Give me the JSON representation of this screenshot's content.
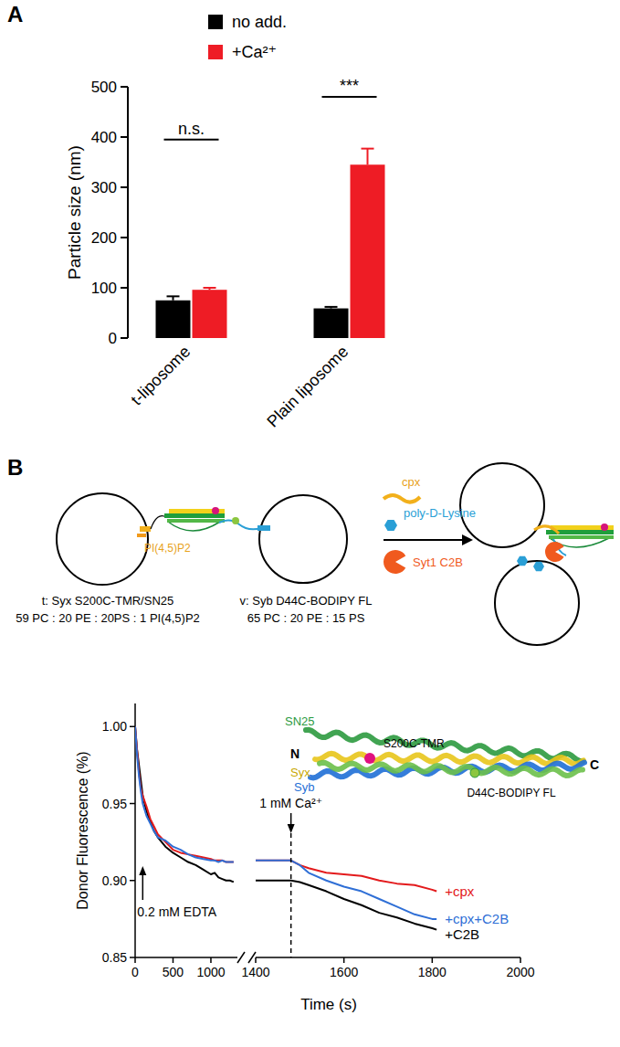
{
  "panels": [
    "A",
    "B"
  ],
  "chart_data": [
    {
      "type": "bar",
      "ylabel": "Particle size (nm)",
      "categories": [
        "t-liposome",
        "Plain liposome"
      ],
      "series": [
        {
          "name": "no add.",
          "color": "#000000",
          "values": [
            75,
            59
          ],
          "errors": [
            8,
            3
          ]
        },
        {
          "name": "+Ca²⁺",
          "color": "#ee1c25",
          "values": [
            96,
            345
          ],
          "errors": [
            4,
            32
          ]
        }
      ],
      "ylim": [
        0,
        500
      ],
      "yticks": [
        0,
        100,
        200,
        300,
        400,
        500
      ],
      "annotations": [
        {
          "text": "n.s.",
          "category": 0,
          "y": 395
        },
        {
          "text": "***",
          "category": 1,
          "y": 480
        }
      ]
    },
    {
      "type": "line",
      "ylabel": "Donor Fluorescence (%)",
      "x": [
        0,
        25,
        50,
        75,
        100,
        150,
        200,
        250,
        300,
        400,
        500,
        600,
        700,
        800,
        900,
        1000,
        1050,
        1100,
        1150,
        1200,
        1250,
        1300
      ],
      "series": [
        {
          "color": "#000000",
          "values": [
            1.0,
            0.985,
            0.975,
            0.965,
            0.955,
            0.945,
            0.938,
            0.932,
            0.928,
            0.922,
            0.918,
            0.915,
            0.912,
            0.91,
            0.907,
            0.904,
            0.905,
            0.902,
            0.901,
            0.9,
            0.9,
            0.899
          ]
        },
        {
          "color": "#e31a1c",
          "values": [
            1.0,
            0.985,
            0.97,
            0.96,
            0.955,
            0.948,
            0.94,
            0.935,
            0.93,
            0.925,
            0.92,
            0.918,
            0.917,
            0.916,
            0.915,
            0.914,
            0.913,
            0.913,
            0.913,
            0.912,
            0.912,
            0.912
          ]
        },
        {
          "color": "#2f6fd6",
          "values": [
            1.0,
            0.982,
            0.968,
            0.958,
            0.95,
            0.942,
            0.937,
            0.932,
            0.928,
            0.926,
            0.922,
            0.92,
            0.917,
            0.915,
            0.914,
            0.913,
            0.913,
            0.912,
            0.913,
            0.912,
            0.912,
            0.912
          ]
        }
      ],
      "xlim": [
        0,
        1350
      ],
      "xticks": [
        0,
        500,
        1000
      ],
      "ylim": [
        0.85,
        1.015
      ],
      "yticks": [
        0.85,
        {
          "value": 0.9,
          "label": "0.90"
        },
        0.95,
        {
          "value": 1,
          "label": "1.00"
        }
      ],
      "annotations": [
        {
          "text": "0.2 mM EDTA",
          "x": 100
        }
      ]
    },
    {
      "type": "line",
      "xlabel": "Time (s)",
      "tick_labels": "x",
      "x": [
        1400,
        1440,
        1480,
        1500,
        1520,
        1560,
        1600,
        1640,
        1680,
        1720,
        1760,
        1800,
        1810
      ],
      "series": [
        {
          "name": "+cpx",
          "color": "#e31a1c",
          "values": [
            0.913,
            0.913,
            0.913,
            0.91,
            0.908,
            0.905,
            0.904,
            0.903,
            0.9,
            0.898,
            0.897,
            0.894,
            0.893
          ]
        },
        {
          "name": "+cpx+C2B",
          "color": "#2f6fd6",
          "values": [
            0.913,
            0.913,
            0.913,
            0.91,
            0.905,
            0.9,
            0.896,
            0.893,
            0.888,
            0.883,
            0.878,
            0.875,
            0.875
          ]
        },
        {
          "name": "+C2B",
          "color": "#000000",
          "values": [
            0.9,
            0.9,
            0.9,
            0.899,
            0.897,
            0.893,
            0.888,
            0.884,
            0.879,
            0.876,
            0.872,
            0.869,
            0.868
          ]
        }
      ],
      "xlim": [
        1400,
        2000
      ],
      "xticks": [
        1400,
        1600,
        1800,
        2000
      ],
      "ylim": [
        0.85,
        1.015
      ],
      "annotations": [
        {
          "text": "1 mM Ca²⁺",
          "x": 1480
        }
      ]
    }
  ],
  "diagram": {
    "t_liposome": {
      "label": "t: Syx S200C-TMR/SN25",
      "lipids": "59 PC : 20 PE : 20PS : 1 PI(4,5)P2",
      "lipid_tag": "PI(4,5)P2"
    },
    "v_liposome": {
      "label": "v: Syb D44C-BODIPY FL",
      "lipids": "65 PC : 20 PE : 15 PS"
    },
    "additives": {
      "complexin": "cpx",
      "polylysine": "poly-D-Lysine",
      "c2b": "Syt1 C2B"
    },
    "structure": {
      "sn25": "SN25",
      "syx": "Syx",
      "syb": "Syb",
      "n_term": "N",
      "c_term": "C",
      "tmr_site": "S200C-TMR",
      "bodipy_site": "D44C-BODIPY FL"
    }
  }
}
